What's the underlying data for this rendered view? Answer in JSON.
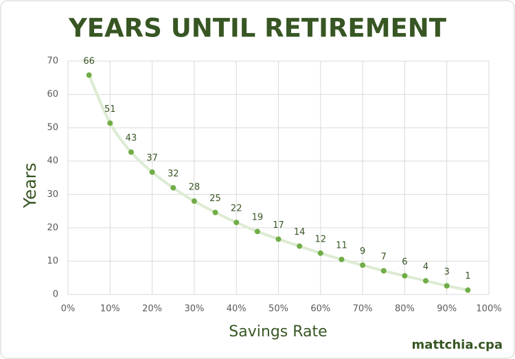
{
  "chart_data": {
    "type": "line",
    "title": "YEARS UNTIL RETIREMENT",
    "x_label": "Savings Rate",
    "y_label": "Years",
    "credit": "mattchia.cpa",
    "x": [
      5,
      10,
      15,
      20,
      25,
      30,
      35,
      40,
      45,
      50,
      55,
      60,
      65,
      70,
      75,
      80,
      85,
      90,
      95
    ],
    "series": [
      {
        "color": "#70ad47",
        "values": [
          65.8,
          51.4,
          42.7,
          36.7,
          32.0,
          28.0,
          24.6,
          21.6,
          18.9,
          16.6,
          14.5,
          12.4,
          10.5,
          8.8,
          7.1,
          5.6,
          4.1,
          2.6,
          1.3
        ],
        "value_labels": [
          "66",
          "51",
          "43",
          "37",
          "32",
          "28",
          "25",
          "22",
          "19",
          "17",
          "14",
          "12",
          "11",
          "9",
          "7",
          "6",
          "4",
          "3",
          "1"
        ]
      }
    ],
    "xlim": [
      0,
      100
    ],
    "xticks": [
      {
        "value": 0,
        "label": "0%"
      },
      {
        "value": 10,
        "label": "10%"
      },
      {
        "value": 20,
        "label": "20%"
      },
      {
        "value": 30,
        "label": "30%"
      },
      {
        "value": 40,
        "label": "40%"
      },
      {
        "value": 50,
        "label": "50%"
      },
      {
        "value": 60,
        "label": "60%"
      },
      {
        "value": 70,
        "label": "70%"
      },
      {
        "value": 80,
        "label": "80%"
      },
      {
        "value": 90,
        "label": "90%"
      },
      {
        "value": 100,
        "label": "100%"
      }
    ],
    "ylim": [
      0,
      70
    ],
    "yticks": [
      0,
      10,
      20,
      30,
      40,
      50,
      60,
      70
    ],
    "grid": true
  }
}
